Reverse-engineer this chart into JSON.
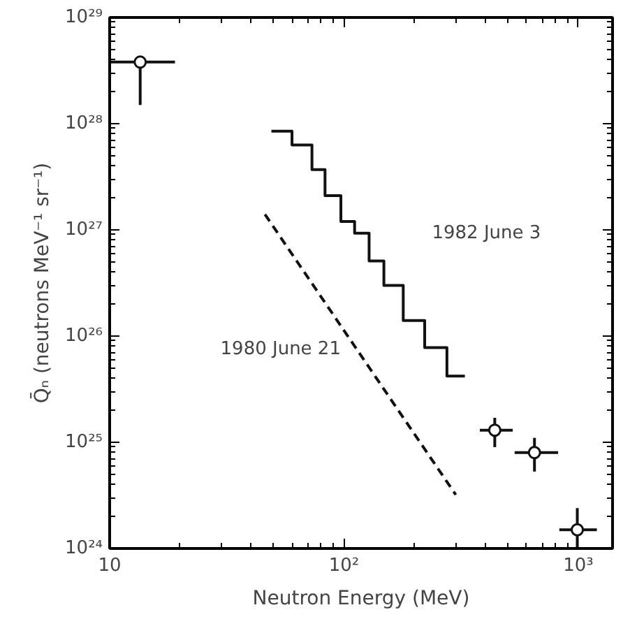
{
  "chart_data": {
    "type": "scatter",
    "xlabel": "Neutron Energy (MeV)",
    "ylabel": "Q̄ₙ (neutrons MeV⁻¹ sr⁻¹)",
    "log": "xy",
    "grid": false,
    "xlim": [
      10,
      1400
    ],
    "ylim": [
      1e+24,
      1e+29
    ],
    "xticks": [
      {
        "value": 10,
        "label": "10"
      },
      {
        "value": 100,
        "label": "10²"
      },
      {
        "value": 1000,
        "label": "10³"
      }
    ],
    "yticks": [
      {
        "value": 1e+24,
        "label": "10²⁴"
      },
      {
        "value": 1e+25,
        "label": "10²⁵"
      },
      {
        "value": 1e+26,
        "label": "10²⁶"
      },
      {
        "value": 1e+27,
        "label": "10²⁷"
      },
      {
        "value": 1e+28,
        "label": "10²⁸"
      },
      {
        "value": 1e+29,
        "label": "10²⁹"
      }
    ],
    "series": [
      {
        "color": "#111111",
        "marker": "circle",
        "x": [
          13.5,
          440,
          650,
          990
        ],
        "values": [
          3.8e+28,
          1.3e+25,
          8e+24,
          1.5e+24
        ],
        "errors": [
          [
            1.5e+28,
            3.8e+28
          ],
          [
            9e+24,
            1.7e+25
          ],
          [
            5.3e+24,
            1.1e+25
          ],
          [
            1e+24,
            2.4e+24
          ]
        ],
        "xerrors": [
          [
            10,
            19
          ],
          [
            380,
            525
          ],
          [
            535,
            820
          ],
          [
            830,
            1200
          ]
        ]
      },
      {
        "type": "step",
        "name": "1982 June 3",
        "color": "#111111",
        "line_style": "solid",
        "x": [
          49,
          60,
          73,
          83,
          97,
          111,
          128,
          148,
          179,
          221,
          275,
          328
        ],
        "values": [
          8.5e+27,
          6.3e+27,
          3.7e+27,
          2.1e+27,
          1.2e+27,
          9.3e+26,
          5.1e+26,
          3e+26,
          1.4e+26,
          7.8e+25,
          4.2e+25,
          4.2e+25
        ]
      },
      {
        "type": "line",
        "name": "1980 June 21",
        "color": "#111111",
        "line_style": "dashed",
        "x": [
          46,
          300
        ],
        "values": [
          1.4e+27,
          3.2e+24
        ]
      }
    ]
  }
}
